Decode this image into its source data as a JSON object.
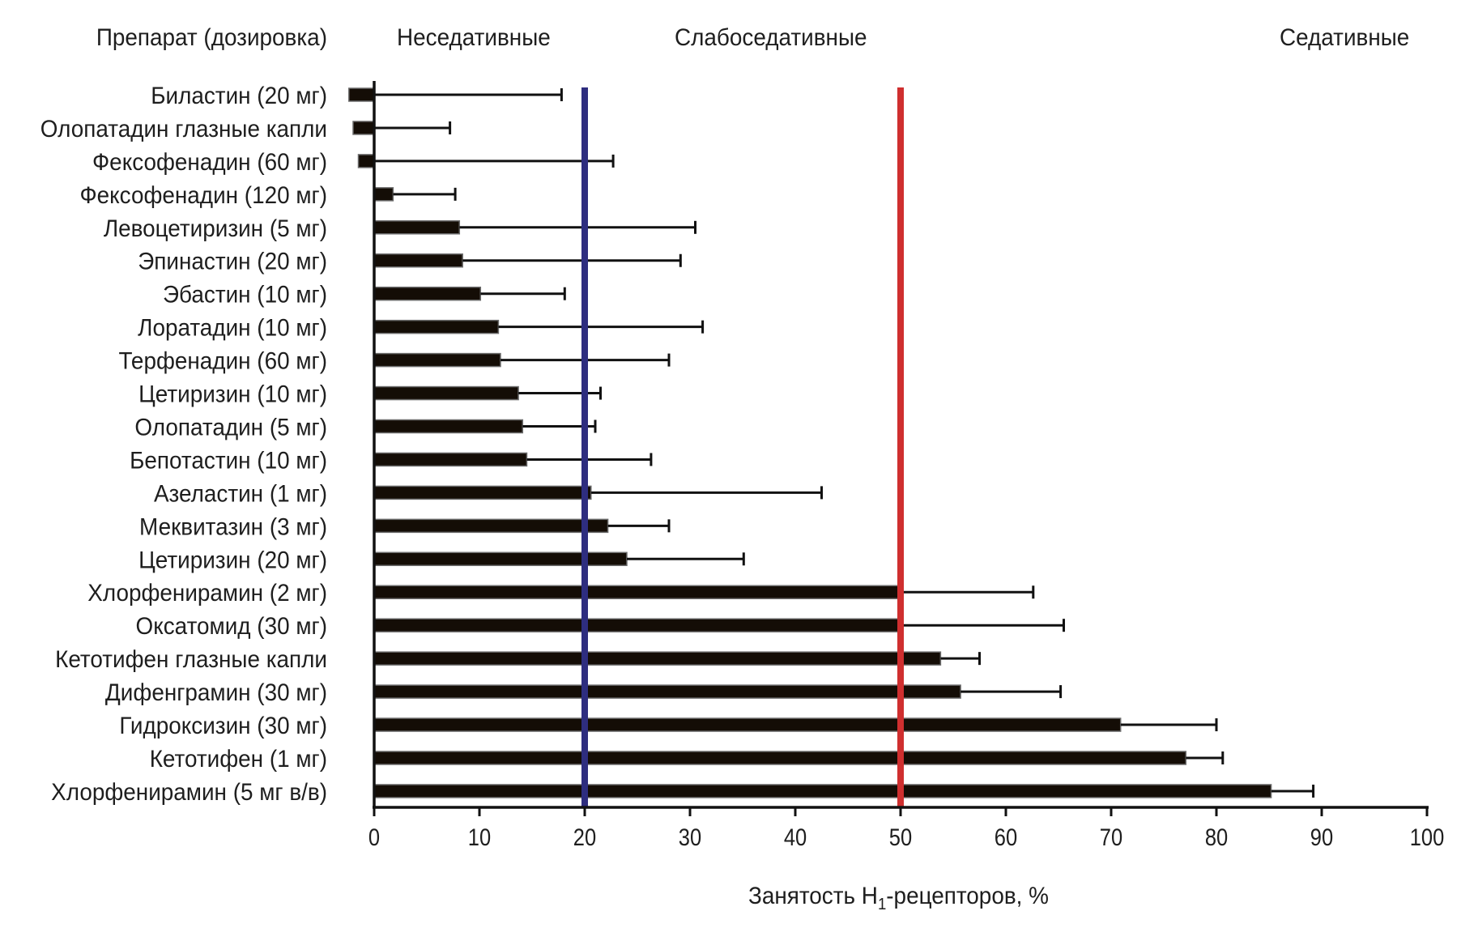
{
  "chart_data": {
    "type": "bar",
    "orientation": "horizontal",
    "category_header": "Препарат (дозировка)",
    "zone_labels": [
      "Неседативные",
      "Слабоседативные",
      "Седативные"
    ],
    "xlabel": "Занятость H1-рецепторов, %",
    "xlabel_parts": {
      "main": "Занятость H",
      "sub": "1",
      "rest": "-рецепторов, %"
    },
    "xlim": [
      0,
      100
    ],
    "xticks": [
      0,
      10,
      20,
      30,
      40,
      50,
      60,
      70,
      80,
      90,
      100
    ],
    "thresholds": [
      {
        "value": 20,
        "color": "#2e2d7f"
      },
      {
        "value": 50,
        "color": "#cf2f2f"
      }
    ],
    "bar_color": "#140d06",
    "categories": [
      "Биластин (20 мг)",
      "Олопатадин глазные капли",
      "Фексофенадин (60 мг)",
      "Фексофенадин (120 мг)",
      "Левоцетиризин (5 мг)",
      "Эпинастин (20 мг)",
      "Эбастин (10 мг)",
      "Лоратадин (10 мг)",
      "Терфенадин (60 мг)",
      "Цетиризин (10 мг)",
      "Олопатадин (5 мг)",
      "Бепотастин (10 мг)",
      "Азеластин (1 мг)",
      "Меквитазин (3 мг)",
      "Цетиризин (20 мг)",
      "Хлорфенирамин (2 мг)",
      "Оксатомид (30 мг)",
      "Кетотифен глазные капли",
      "Дифенграмин (30 мг)",
      "Гидроксизин (30 мг)",
      "Кетотифен (1 мг)",
      "Хлорфенирамин (5 мг в/в)"
    ],
    "values": [
      -2.4,
      -2.0,
      -1.5,
      1.8,
      8.1,
      8.4,
      10.1,
      11.8,
      12.0,
      13.7,
      14.1,
      14.5,
      20.6,
      22.2,
      24.0,
      50.0,
      50.0,
      53.8,
      55.7,
      70.9,
      77.1,
      85.2
    ],
    "error_upper": [
      17.8,
      7.2,
      22.7,
      7.7,
      30.5,
      29.1,
      18.1,
      31.2,
      28.0,
      21.5,
      21.0,
      26.3,
      42.5,
      28.0,
      35.1,
      62.6,
      65.5,
      57.5,
      65.2,
      80.0,
      80.6,
      89.2
    ]
  }
}
